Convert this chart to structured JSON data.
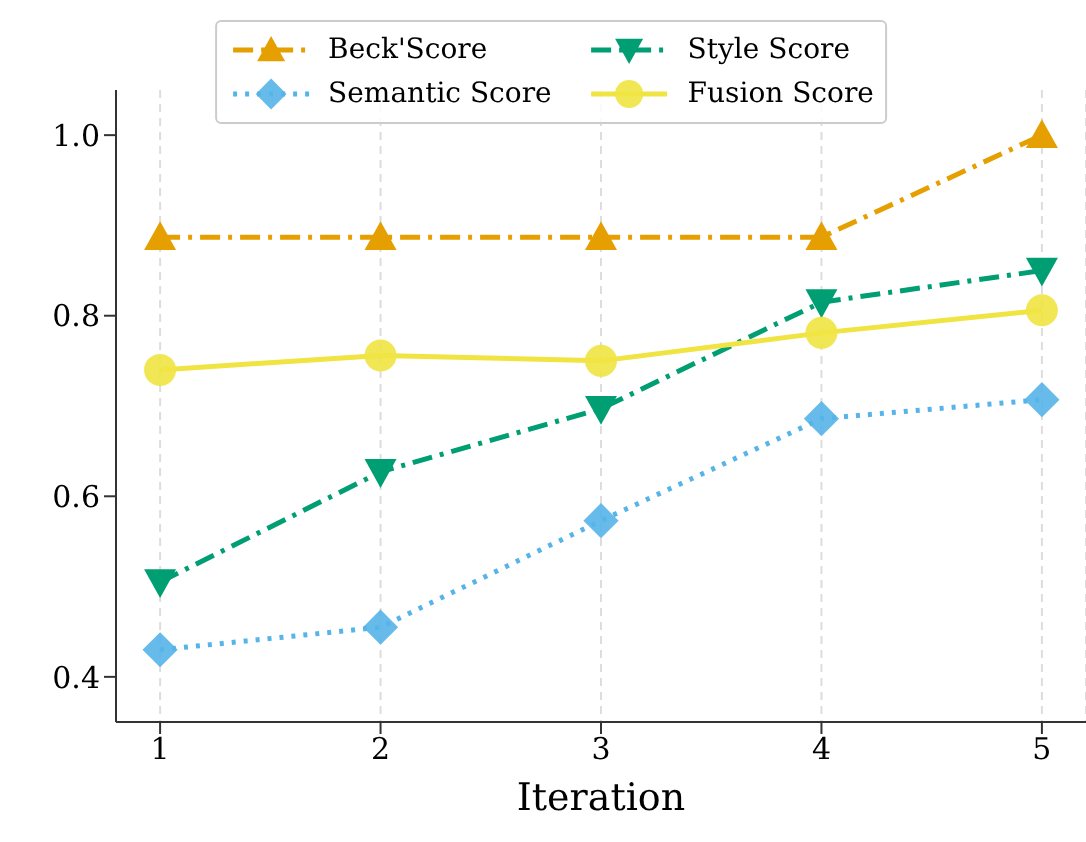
{
  "chart_data": {
    "type": "line",
    "xlabel": "Iteration",
    "x": [
      1,
      2,
      3,
      4,
      5
    ],
    "xlim": [
      0.8,
      5.2
    ],
    "xticks": [
      1,
      2,
      3,
      4,
      5
    ],
    "ylim": [
      0.35,
      1.05
    ],
    "yticks": [
      {
        "value": 0.4,
        "label": "0.4"
      },
      {
        "value": 0.6,
        "label": "0.6"
      },
      {
        "value": 0.8,
        "label": "0.8"
      },
      {
        "value": 1,
        "label": "1.0"
      }
    ],
    "grid": "x",
    "legend": "top",
    "series": [
      {
        "name": "Beck'Score",
        "color": "#e69f00",
        "marker": "triangle",
        "line_style": "dashdot",
        "values": [
          0.887,
          0.887,
          0.887,
          0.887,
          1.0
        ]
      },
      {
        "name": "Semantic Score",
        "color": "#56b4e9",
        "marker": "diamond",
        "line_style": "dotted",
        "values": [
          0.43,
          0.455,
          0.573,
          0.686,
          0.707
        ]
      },
      {
        "name": "Style Score",
        "color": "#009e73",
        "marker": "triangle_down",
        "line_style": "dashdot",
        "values": [
          0.505,
          0.627,
          0.697,
          0.815,
          0.85
        ]
      },
      {
        "name": "Fusion Score",
        "color": "#f0e442",
        "marker": "circle",
        "line_style": "solid",
        "values": [
          0.74,
          0.756,
          0.75,
          0.781,
          0.806
        ]
      }
    ]
  }
}
